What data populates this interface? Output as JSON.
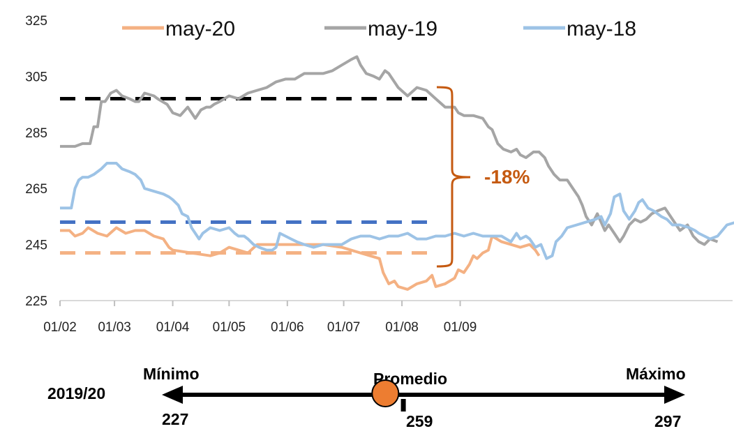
{
  "chart_data": {
    "type": "line",
    "x_tick_labels": [
      "01/02",
      "01/03",
      "01/04",
      "01/05",
      "01/06",
      "01/07",
      "01/08",
      "01/09"
    ],
    "y_tick_labels": [
      "225",
      "245",
      "265",
      "285",
      "305",
      "325"
    ],
    "ylim": [
      225,
      325
    ],
    "grid": false,
    "legend_position": "top",
    "series": [
      {
        "name": "may-20",
        "color": "#f4b183",
        "points": [
          [
            0,
            250
          ],
          [
            5,
            250
          ],
          [
            8,
            248
          ],
          [
            12,
            249
          ],
          [
            15,
            251
          ],
          [
            20,
            249
          ],
          [
            25,
            248
          ],
          [
            30,
            251
          ],
          [
            35,
            249
          ],
          [
            40,
            250
          ],
          [
            45,
            250
          ],
          [
            50,
            248
          ],
          [
            55,
            247
          ],
          [
            58,
            244
          ],
          [
            60,
            243
          ],
          [
            70,
            242
          ],
          [
            80,
            241
          ],
          [
            85,
            242
          ],
          [
            90,
            244
          ],
          [
            95,
            243
          ],
          [
            100,
            242
          ],
          [
            105,
            245
          ],
          [
            110,
            245
          ],
          [
            120,
            245
          ],
          [
            130,
            245
          ],
          [
            140,
            245
          ],
          [
            150,
            244
          ],
          [
            160,
            242
          ],
          [
            165,
            241
          ],
          [
            170,
            240
          ],
          [
            172,
            235
          ],
          [
            175,
            231
          ],
          [
            178,
            232
          ],
          [
            180,
            230
          ],
          [
            185,
            229
          ],
          [
            190,
            231
          ],
          [
            195,
            232
          ],
          [
            198,
            234
          ],
          [
            200,
            230
          ],
          [
            205,
            231
          ],
          [
            210,
            233
          ],
          [
            212,
            236
          ],
          [
            215,
            235
          ],
          [
            218,
            238
          ],
          [
            220,
            241
          ],
          [
            222,
            240
          ],
          [
            225,
            242
          ],
          [
            228,
            243
          ],
          [
            230,
            248
          ],
          [
            235,
            246
          ],
          [
            240,
            245
          ],
          [
            245,
            244
          ],
          [
            250,
            245
          ],
          [
            253,
            243
          ],
          [
            255,
            241
          ]
        ]
      },
      {
        "name": "may-19",
        "color": "#a5a5a5",
        "points": [
          [
            0,
            280
          ],
          [
            8,
            280
          ],
          [
            12,
            281
          ],
          [
            16,
            281
          ],
          [
            18,
            287
          ],
          [
            20,
            287
          ],
          [
            22,
            296
          ],
          [
            24,
            296
          ],
          [
            27,
            299
          ],
          [
            30,
            300
          ],
          [
            33,
            298
          ],
          [
            37,
            297
          ],
          [
            40,
            296
          ],
          [
            42,
            296
          ],
          [
            45,
            299
          ],
          [
            50,
            298
          ],
          [
            52,
            297
          ],
          [
            57,
            295
          ],
          [
            60,
            292
          ],
          [
            64,
            291
          ],
          [
            68,
            294
          ],
          [
            72,
            290
          ],
          [
            75,
            293
          ],
          [
            78,
            294
          ],
          [
            80,
            294
          ],
          [
            82,
            295
          ],
          [
            85,
            296
          ],
          [
            90,
            298
          ],
          [
            95,
            297
          ],
          [
            100,
            299
          ],
          [
            105,
            300
          ],
          [
            110,
            301
          ],
          [
            115,
            303
          ],
          [
            120,
            304
          ],
          [
            125,
            304
          ],
          [
            130,
            306
          ],
          [
            135,
            306
          ],
          [
            140,
            306
          ],
          [
            145,
            307
          ],
          [
            150,
            309
          ],
          [
            155,
            311
          ],
          [
            158,
            312
          ],
          [
            160,
            309
          ],
          [
            163,
            306
          ],
          [
            167,
            305
          ],
          [
            170,
            304
          ],
          [
            173,
            307
          ],
          [
            175,
            306
          ],
          [
            180,
            301
          ],
          [
            185,
            298
          ],
          [
            190,
            301
          ],
          [
            195,
            300
          ],
          [
            200,
            297
          ],
          [
            205,
            294
          ],
          [
            210,
            294
          ],
          [
            212,
            292
          ],
          [
            215,
            291
          ],
          [
            220,
            291
          ],
          [
            225,
            290
          ],
          [
            228,
            287
          ],
          [
            230,
            286
          ],
          [
            233,
            281
          ],
          [
            236,
            279
          ],
          [
            240,
            278
          ],
          [
            243,
            279
          ],
          [
            245,
            277
          ],
          [
            248,
            276
          ],
          [
            252,
            278
          ],
          [
            255,
            278
          ],
          [
            258,
            276
          ],
          [
            260,
            273
          ],
          [
            263,
            270
          ],
          [
            266,
            268
          ],
          [
            270,
            268
          ],
          [
            273,
            265
          ],
          [
            276,
            262
          ],
          [
            278,
            259
          ],
          [
            280,
            255
          ],
          [
            283,
            252
          ],
          [
            286,
            256
          ],
          [
            290,
            250
          ],
          [
            292,
            252
          ],
          [
            295,
            249
          ],
          [
            298,
            246
          ],
          [
            300,
            248
          ],
          [
            303,
            252
          ],
          [
            306,
            254
          ],
          [
            309,
            253
          ],
          [
            312,
            254
          ],
          [
            315,
            256
          ],
          [
            318,
            257
          ],
          [
            322,
            258
          ],
          [
            325,
            255
          ],
          [
            330,
            250
          ],
          [
            334,
            252
          ],
          [
            337,
            248
          ],
          [
            340,
            246
          ],
          [
            343,
            245
          ],
          [
            346,
            247
          ],
          [
            350,
            246
          ]
        ]
      },
      {
        "name": "may-18",
        "color": "#9dc3e6",
        "points": [
          [
            0,
            258
          ],
          [
            6,
            258
          ],
          [
            8,
            265
          ],
          [
            10,
            268
          ],
          [
            12,
            269
          ],
          [
            15,
            269
          ],
          [
            18,
            270
          ],
          [
            22,
            272
          ],
          [
            25,
            274
          ],
          [
            30,
            274
          ],
          [
            33,
            272
          ],
          [
            37,
            271
          ],
          [
            40,
            270
          ],
          [
            43,
            268
          ],
          [
            45,
            265
          ],
          [
            50,
            264
          ],
          [
            55,
            263
          ],
          [
            58,
            262
          ],
          [
            60,
            261
          ],
          [
            63,
            259
          ],
          [
            65,
            256
          ],
          [
            68,
            255
          ],
          [
            70,
            251
          ],
          [
            72,
            249
          ],
          [
            74,
            247
          ],
          [
            76,
            249
          ],
          [
            80,
            251
          ],
          [
            85,
            250
          ],
          [
            90,
            251
          ],
          [
            93,
            249
          ],
          [
            95,
            248
          ],
          [
            98,
            248
          ],
          [
            100,
            247
          ],
          [
            103,
            245
          ],
          [
            106,
            244
          ],
          [
            110,
            243
          ],
          [
            113,
            243
          ],
          [
            115,
            244
          ],
          [
            117,
            249
          ],
          [
            120,
            248
          ],
          [
            123,
            247
          ],
          [
            126,
            246
          ],
          [
            130,
            245
          ],
          [
            135,
            244
          ],
          [
            140,
            245
          ],
          [
            145,
            245
          ],
          [
            150,
            245
          ],
          [
            155,
            247
          ],
          [
            160,
            248
          ],
          [
            165,
            248
          ],
          [
            170,
            247
          ],
          [
            175,
            248
          ],
          [
            180,
            248
          ],
          [
            185,
            249
          ],
          [
            190,
            247
          ],
          [
            195,
            247
          ],
          [
            200,
            248
          ],
          [
            205,
            248
          ],
          [
            210,
            249
          ],
          [
            215,
            248
          ],
          [
            220,
            249
          ],
          [
            225,
            248
          ],
          [
            230,
            248
          ],
          [
            235,
            248
          ],
          [
            240,
            246
          ],
          [
            243,
            249
          ],
          [
            245,
            247
          ],
          [
            248,
            248
          ],
          [
            250,
            247
          ],
          [
            253,
            244
          ],
          [
            256,
            245
          ],
          [
            259,
            240
          ],
          [
            262,
            241
          ],
          [
            264,
            246
          ],
          [
            267,
            248
          ],
          [
            270,
            251
          ],
          [
            275,
            252
          ],
          [
            280,
            253
          ],
          [
            285,
            254
          ],
          [
            288,
            255
          ],
          [
            290,
            252
          ],
          [
            293,
            256
          ],
          [
            295,
            262
          ],
          [
            298,
            263
          ],
          [
            300,
            257
          ],
          [
            303,
            254
          ],
          [
            306,
            257
          ],
          [
            308,
            260
          ],
          [
            310,
            261
          ],
          [
            313,
            258
          ],
          [
            316,
            257
          ],
          [
            320,
            255
          ],
          [
            323,
            254
          ],
          [
            326,
            252
          ],
          [
            330,
            252
          ],
          [
            335,
            251
          ],
          [
            338,
            250
          ],
          [
            340,
            249
          ],
          [
            343,
            248
          ],
          [
            346,
            247
          ],
          [
            350,
            248
          ],
          [
            355,
            252
          ],
          [
            360,
            253
          ],
          [
            363,
            252
          ],
          [
            365,
            256
          ],
          [
            370,
            260
          ],
          [
            375,
            262
          ],
          [
            380,
            263
          ],
          [
            385,
            262
          ],
          [
            388,
            264
          ],
          [
            390,
            265
          ],
          [
            395,
            266
          ],
          [
            400,
            268
          ],
          [
            405,
            267
          ],
          [
            410,
            265
          ],
          [
            415,
            266
          ],
          [
            420,
            265
          ],
          [
            423,
            266
          ],
          [
            427,
            264
          ],
          [
            430,
            266
          ]
        ]
      }
    ],
    "reference_lines": [
      {
        "series": "may-19",
        "value": 297,
        "color": "#000000"
      },
      {
        "series": "may-18",
        "value": 253,
        "color": "#4472c4"
      },
      {
        "series": "may-20",
        "value": 242,
        "color": "#f4b183"
      }
    ],
    "annotations": [
      {
        "text": "-18%",
        "color": "#c55a11"
      }
    ]
  },
  "scale": {
    "row_label": "2019/20",
    "min_label": "Mínimo",
    "avg_label": "Promedio",
    "max_label": "Máximo",
    "min_value": 227,
    "avg_value": 259,
    "max_value": 297,
    "min_value_text": "227",
    "avg_value_text": "259",
    "max_value_text": "297",
    "current_value": 256.5,
    "marker_color": "#ed7d31"
  }
}
